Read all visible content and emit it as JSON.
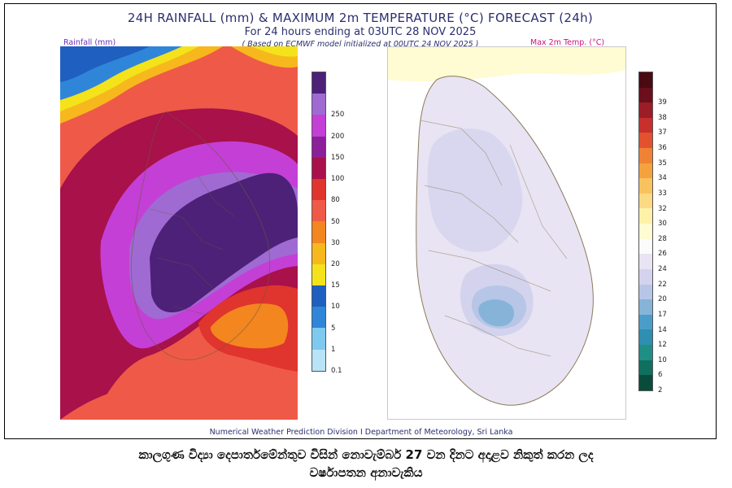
{
  "header": {
    "title": "24H RAINFALL (mm) & MAXIMUM 2m TEMPERATURE (°C) FORECAST (24h)",
    "subtitle": "For 24 hours ending at 03UTC 28 NOV 2025",
    "model_note": "( Based on ECMWF model initialized at 00UTC 24 NOV 2025 )"
  },
  "rain_map": {
    "label": "Rainfall (mm)",
    "colorbar": [
      {
        "value": "0.1",
        "color": "#b9e3f7"
      },
      {
        "value": "1",
        "color": "#7ec9ef"
      },
      {
        "value": "5",
        "color": "#2f86d9"
      },
      {
        "value": "10",
        "color": "#1f5fbf"
      },
      {
        "value": "15",
        "color": "#f4e31a"
      },
      {
        "value": "20",
        "color": "#f7b81d"
      },
      {
        "value": "30",
        "color": "#f3861f"
      },
      {
        "value": "50",
        "color": "#ef5a48"
      },
      {
        "value": "80",
        "color": "#e0342e"
      },
      {
        "value": "100",
        "color": "#a8114a"
      },
      {
        "value": "150",
        "color": "#8c1f9a"
      },
      {
        "value": "200",
        "color": "#c43fd6"
      },
      {
        "value": "250",
        "color": "#a06ad3"
      },
      {
        "value": "",
        "color": "#4c2177"
      }
    ]
  },
  "temp_map": {
    "label": "Max 2m Temp. (°C)",
    "colorbar": [
      {
        "value": "2",
        "color": "#0a4c3c"
      },
      {
        "value": "6",
        "color": "#107060"
      },
      {
        "value": "10",
        "color": "#1f8f86"
      },
      {
        "value": "12",
        "color": "#2e8fb0"
      },
      {
        "value": "14",
        "color": "#4b9dc9"
      },
      {
        "value": "17",
        "color": "#86b4d9"
      },
      {
        "value": "20",
        "color": "#b7c6e6"
      },
      {
        "value": "22",
        "color": "#d4d3ee"
      },
      {
        "value": "24",
        "color": "#e9e4f3"
      },
      {
        "value": "26",
        "color": "#fbfbfb"
      },
      {
        "value": "28",
        "color": "#fffbd2"
      },
      {
        "value": "30",
        "color": "#fff1a8"
      },
      {
        "value": "32",
        "color": "#fcd983"
      },
      {
        "value": "33",
        "color": "#f8c25f"
      },
      {
        "value": "34",
        "color": "#f5a23e"
      },
      {
        "value": "35",
        "color": "#f08236"
      },
      {
        "value": "36",
        "color": "#e2522e"
      },
      {
        "value": "37",
        "color": "#c7302c"
      },
      {
        "value": "38",
        "color": "#9c1c27"
      },
      {
        "value": "39",
        "color": "#6b0f1c"
      },
      {
        "value": "",
        "color": "#4a0a14"
      }
    ]
  },
  "footer": {
    "credit": "Numerical Weather Prediction Division I Department of Meteorology, Sri Lanka",
    "caption_line1": "කාලගුණ විද්‍යා දෙපාර්තමේන්තුව විසින් නොවැම්බර් 27 වන දිනට අදාළව නිකුත් කරන ලද",
    "caption_line2": "වර්ෂාපතන අනාවැකිය"
  }
}
